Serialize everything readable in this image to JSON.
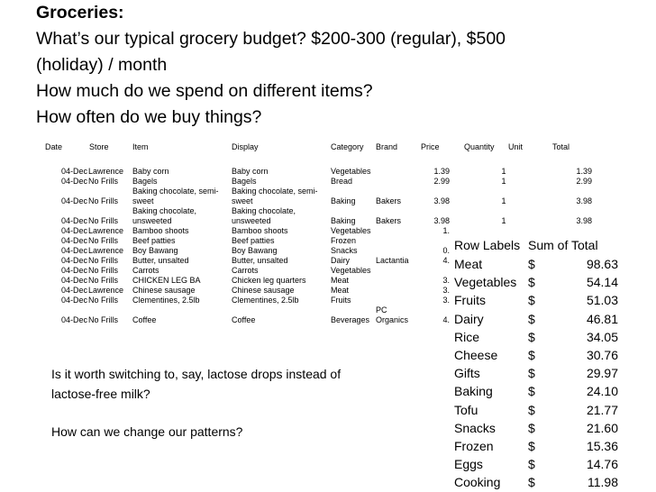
{
  "heading": {
    "title": "Groceries:",
    "lines": [
      "What’s our typical grocery budget? $200-300 (regular), $500",
      "(holiday) / month",
      "How much do we spend on different items?",
      "How often do we buy things?"
    ]
  },
  "sheet": {
    "columns": [
      "Date",
      "Store",
      "Item",
      "Display",
      "Category",
      "Brand",
      "Price",
      "Quantity",
      "Unit",
      "Total"
    ],
    "rows": [
      {
        "date": "04-Dec",
        "store": "Lawrence",
        "item": [
          "Baby corn"
        ],
        "display": [
          "Baby corn"
        ],
        "category": "Vegetables",
        "brand": "",
        "price": "1.39",
        "qty": "1",
        "total": "1.39"
      },
      {
        "date": "04-Dec",
        "store": "No Frills",
        "item": [
          "Bagels"
        ],
        "display": [
          "Bagels"
        ],
        "category": "Bread",
        "brand": "",
        "price": "2.99",
        "qty": "1",
        "total": "2.99"
      },
      {
        "date": "04-Dec",
        "store": "No Frills",
        "item": [
          "Baking chocolate, semi-",
          "sweet"
        ],
        "display": [
          "Baking chocolate, semi-",
          "sweet"
        ],
        "category": "Baking",
        "brand": "Bakers",
        "price": "3.98",
        "qty": "1",
        "total": "3.98"
      },
      {
        "date": "04-Dec",
        "store": "No Frills",
        "item": [
          "Baking chocolate,",
          "unsweeted"
        ],
        "display": [
          "Baking chocolate,",
          "unsweeted"
        ],
        "category": "Baking",
        "brand": "Bakers",
        "price": "3.98",
        "qty": "1",
        "total": "3.98"
      },
      {
        "date": "04-Dec",
        "store": "Lawrence",
        "item": [
          "Bamboo shoots"
        ],
        "display": [
          "Bamboo shoots"
        ],
        "category": "Vegetables",
        "brand": "",
        "price": "1.",
        "qty": "",
        "total": ""
      },
      {
        "date": "04-Dec",
        "store": "No Frills",
        "item": [
          "Beef patties"
        ],
        "display": [
          "Beef patties"
        ],
        "category": "Frozen",
        "brand": "",
        "price": "",
        "qty": "",
        "total": ""
      },
      {
        "date": "04-Dec",
        "store": "Lawrence",
        "item": [
          "Boy Bawang"
        ],
        "display": [
          "Boy Bawang"
        ],
        "category": "Snacks",
        "brand": "",
        "price": "0.",
        "qty": "",
        "total": ""
      },
      {
        "date": "04-Dec",
        "store": "No Frills",
        "item": [
          "Butter, unsalted"
        ],
        "display": [
          "Butter, unsalted"
        ],
        "category": "Dairy",
        "brand": "Lactantia",
        "price": "4.",
        "qty": "",
        "total": ""
      },
      {
        "date": "04-Dec",
        "store": "No Frills",
        "item": [
          "Carrots"
        ],
        "display": [
          "Carrots"
        ],
        "category": "Vegetables",
        "brand": "",
        "price": "",
        "qty": "",
        "total": ""
      },
      {
        "date": "04-Dec",
        "store": "No Frills",
        "item": [
          "CHICKEN LEG BA"
        ],
        "display": [
          "Chicken leg quarters"
        ],
        "category": "Meat",
        "brand": "",
        "price": "3.",
        "qty": "",
        "total": ""
      },
      {
        "date": "04-Dec",
        "store": "Lawrence",
        "item": [
          "Chinese sausage"
        ],
        "display": [
          "Chinese sausage"
        ],
        "category": "Meat",
        "brand": "",
        "price": "3.",
        "qty": "",
        "total": ""
      },
      {
        "date": "04-Dec",
        "store": "No Frills",
        "item": [
          "Clementines, 2.5lb"
        ],
        "display": [
          "Clementines, 2.5lb"
        ],
        "category": "Fruits",
        "brand": "",
        "price": "3.",
        "qty": "",
        "total": ""
      },
      {
        "date": "04-Dec",
        "store": "No Frills",
        "item": [
          "Coffee"
        ],
        "display": [
          "Coffee"
        ],
        "category": "Beverages",
        "brand": [
          "PC",
          "Organics"
        ],
        "price": "4.",
        "qty": "",
        "total": ""
      }
    ]
  },
  "pivot": {
    "header_label": "Row Labels",
    "header_value": "Sum of Total",
    "currency": "$",
    "rows": [
      {
        "label": "Meat",
        "value": "98.63"
      },
      {
        "label": "Vegetables",
        "value": "54.14"
      },
      {
        "label": "Fruits",
        "value": "51.03"
      },
      {
        "label": "Dairy",
        "value": "46.81"
      },
      {
        "label": "Rice",
        "value": "34.05"
      },
      {
        "label": "Cheese",
        "value": "30.76"
      },
      {
        "label": "Gifts",
        "value": "29.97"
      },
      {
        "label": "Baking",
        "value": "24.10"
      },
      {
        "label": "Tofu",
        "value": "21.77"
      },
      {
        "label": "Snacks",
        "value": "21.60"
      },
      {
        "label": "Frozen",
        "value": "15.36"
      },
      {
        "label": "Eggs",
        "value": "14.76"
      },
      {
        "label": "Cooking",
        "value": "11.98"
      }
    ]
  },
  "notes": {
    "question1": [
      "Is it worth switching to, say, lactose drops instead of",
      "lactose-free milk?"
    ],
    "question2": "How can we change our patterns?"
  }
}
